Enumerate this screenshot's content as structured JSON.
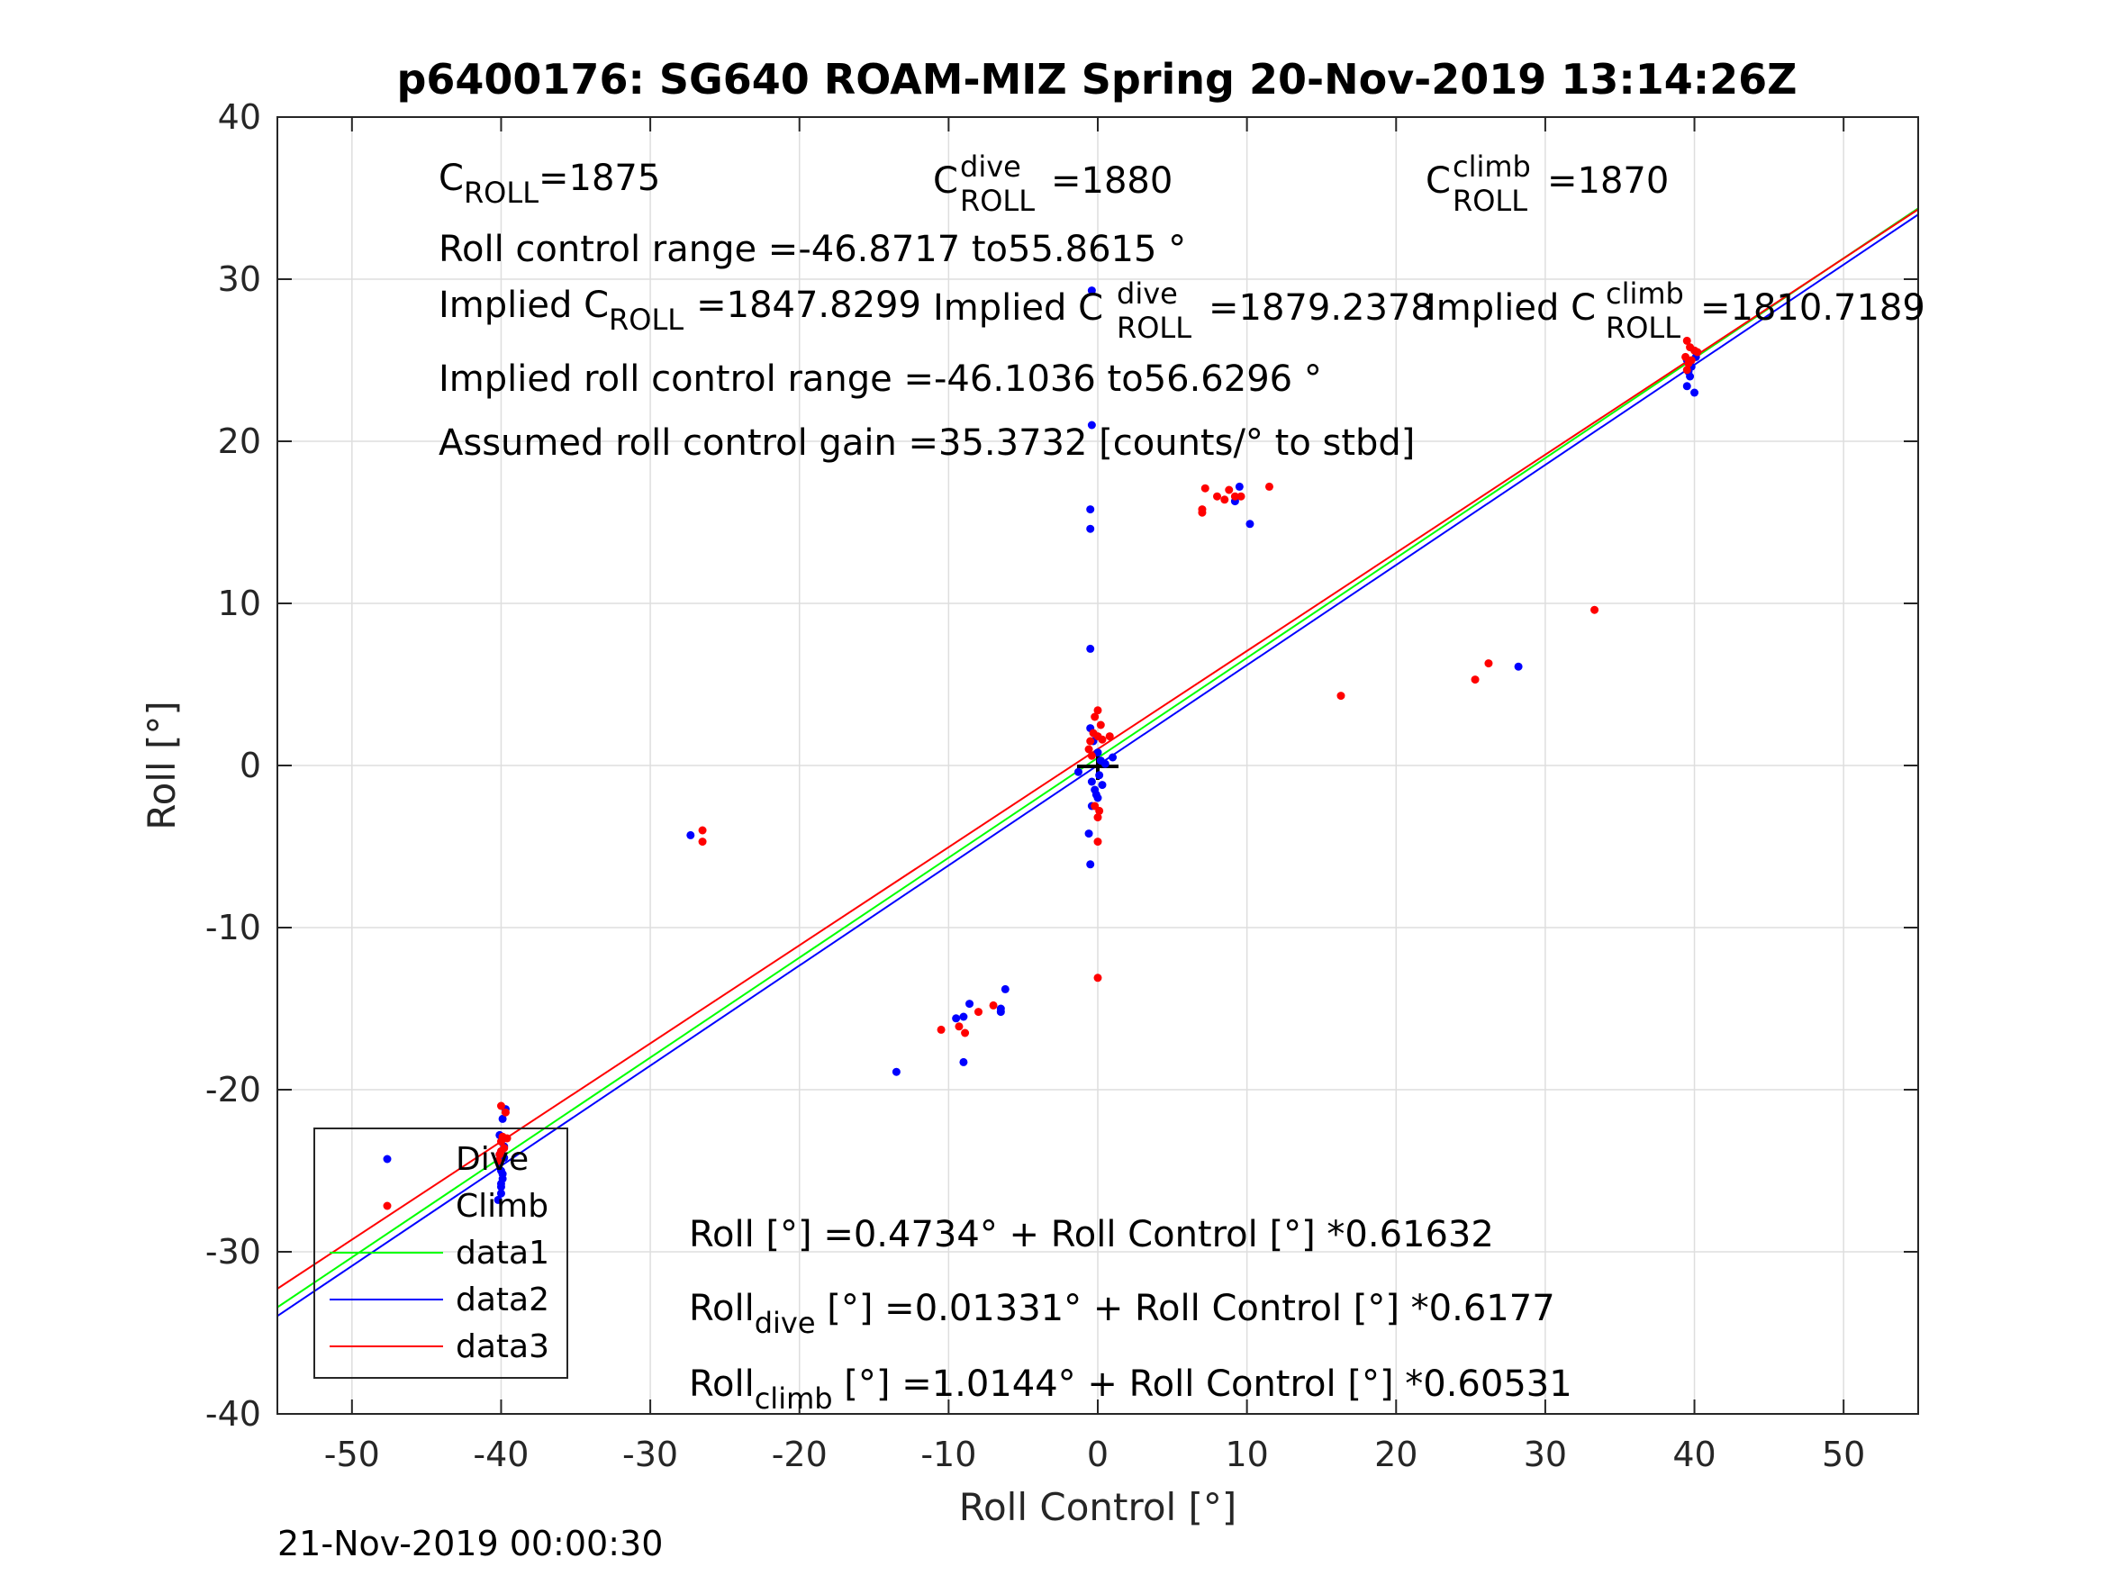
{
  "figure": {
    "title": "p6400176: SG640 ROAM-MIZ Spring 20-Nov-2019 13:14:26Z",
    "footer_timestamp": "21-Nov-2019 00:00:30"
  },
  "annotations": {
    "c_roll": {
      "base": "C",
      "sub": "ROLL",
      "value": "=1875"
    },
    "c_roll_dive": {
      "base": "C",
      "sup": "dive",
      "sub": "ROLL",
      "value": "=1880"
    },
    "c_roll_climb": {
      "base": "C",
      "sup": "climb",
      "sub": "ROLL",
      "value": "=1870"
    },
    "roll_control_range": "Roll control range =-46.8717 to55.8615 °",
    "implied_c_roll": {
      "prefix": "Implied C",
      "sub": "ROLL",
      "value": "=1847.8299"
    },
    "implied_c_roll_dive": {
      "prefix": "Implied C",
      "sup": "dive",
      "sub": "ROLL",
      "value": "=1879.2378"
    },
    "implied_c_roll_climb": {
      "prefix": "Implied C",
      "sup": "climb",
      "sub": "ROLL",
      "value": "=1810.7189"
    },
    "implied_roll_control_range": "Implied roll control range =-46.1036 to56.6296 °",
    "assumed_gain": "Assumed roll control gain =35.3732 [counts/° to stbd]",
    "fit_all": "Roll [°] =0.4734° + Roll Control [°] *0.61632",
    "fit_dive": {
      "prefix": "Roll",
      "sub": "dive",
      "suffix": " [°] =0.01331° + Roll Control [°] *0.6177"
    },
    "fit_climb": {
      "prefix": "Roll",
      "sub": "climb",
      "suffix": " [°] =1.0144° + Roll Control [°] *0.60531"
    }
  },
  "chart_data": {
    "type": "scatter",
    "title": "p6400176: SG640 ROAM-MIZ Spring 20-Nov-2019 13:14:26Z",
    "xlabel": "Roll Control [°]",
    "ylabel": "Roll [°]",
    "xlim": [
      -55,
      55
    ],
    "ylim": [
      -40,
      40
    ],
    "xticks": [
      -50,
      -40,
      -30,
      -20,
      -10,
      0,
      10,
      20,
      30,
      40,
      50
    ],
    "yticks": [
      -40,
      -30,
      -20,
      -10,
      0,
      10,
      20,
      30,
      40
    ],
    "grid": true,
    "legend_position": "bottom-left",
    "legend": [
      "Dive",
      "Climb",
      "data1",
      "data2",
      "data3"
    ],
    "series": [
      {
        "name": "Dive",
        "kind": "points",
        "color": "#0000ff",
        "points": [
          [
            -40.0,
            -25.0
          ],
          [
            -40.1,
            -24.5
          ],
          [
            -39.9,
            -25.5
          ],
          [
            -40.0,
            -26.0
          ],
          [
            -40.2,
            -26.8
          ],
          [
            -39.8,
            -24.2
          ],
          [
            -40.0,
            -23.8
          ],
          [
            -40.1,
            -22.8
          ],
          [
            -39.9,
            -21.8
          ],
          [
            -39.7,
            -21.2
          ],
          [
            -40.0,
            -25.8
          ],
          [
            -40.1,
            -24.0
          ],
          [
            -39.8,
            -23.5
          ],
          [
            -40.0,
            -26.4
          ],
          [
            -39.9,
            -25.2
          ],
          [
            -27.3,
            -4.3
          ],
          [
            -13.5,
            -18.9
          ],
          [
            -9.5,
            -15.6
          ],
          [
            -9.0,
            -15.5
          ],
          [
            -9.0,
            -18.3
          ],
          [
            -8.6,
            -14.7
          ],
          [
            -6.5,
            -15.2
          ],
          [
            -6.5,
            -15.0
          ],
          [
            -6.2,
            -13.8
          ],
          [
            -0.4,
            29.3
          ],
          [
            -0.4,
            21.0
          ],
          [
            -0.5,
            15.8
          ],
          [
            -0.5,
            14.6
          ],
          [
            -0.5,
            7.2
          ],
          [
            -0.5,
            2.3
          ],
          [
            -0.3,
            1.5
          ],
          [
            0.0,
            0.8
          ],
          [
            0.2,
            0.3
          ],
          [
            0.5,
            0.1
          ],
          [
            1.0,
            0.5
          ],
          [
            -1.3,
            -0.4
          ],
          [
            -0.4,
            -1.0
          ],
          [
            -0.2,
            -1.5
          ],
          [
            0.0,
            -2.0
          ],
          [
            -0.4,
            -2.5
          ],
          [
            -0.6,
            -4.2
          ],
          [
            -0.5,
            -6.1
          ],
          [
            0.3,
            -1.2
          ],
          [
            0.1,
            -0.6
          ],
          [
            -0.1,
            -1.8
          ],
          [
            9.2,
            16.3
          ],
          [
            9.5,
            17.2
          ],
          [
            10.2,
            14.9
          ],
          [
            28.2,
            6.1
          ],
          [
            39.5,
            25.0
          ],
          [
            39.8,
            24.6
          ],
          [
            40.0,
            23.0
          ],
          [
            39.5,
            23.4
          ],
          [
            39.7,
            24.0
          ],
          [
            40.1,
            25.2
          ],
          [
            39.6,
            24.3
          ]
        ]
      },
      {
        "name": "Climb",
        "kind": "points",
        "color": "#ff0000",
        "points": [
          [
            -40.0,
            -23.2
          ],
          [
            -39.8,
            -23.6
          ],
          [
            -40.1,
            -24.0
          ],
          [
            -39.9,
            -22.9
          ],
          [
            -40.0,
            -21.0
          ],
          [
            -39.7,
            -21.4
          ],
          [
            -40.2,
            -24.4
          ],
          [
            -39.6,
            -23.0
          ],
          [
            -40.0,
            -23.8
          ],
          [
            -26.5,
            -4.0
          ],
          [
            -26.5,
            -4.7
          ],
          [
            -10.5,
            -16.3
          ],
          [
            -9.3,
            -16.1
          ],
          [
            -8.9,
            -16.5
          ],
          [
            -8.0,
            -15.2
          ],
          [
            -7.0,
            -14.8
          ],
          [
            -0.2,
            3.0
          ],
          [
            0.0,
            3.4
          ],
          [
            -0.3,
            2.0
          ],
          [
            -0.5,
            1.5
          ],
          [
            -0.6,
            1.0
          ],
          [
            0.0,
            1.8
          ],
          [
            0.3,
            1.6
          ],
          [
            0.8,
            1.8
          ],
          [
            -0.2,
            -2.5
          ],
          [
            0.0,
            -3.2
          ],
          [
            0.0,
            -4.7
          ],
          [
            0.1,
            -2.8
          ],
          [
            0.0,
            -13.1
          ],
          [
            -0.4,
            0.6
          ],
          [
            0.2,
            2.5
          ],
          [
            7.0,
            15.6
          ],
          [
            7.0,
            15.8
          ],
          [
            7.2,
            17.1
          ],
          [
            8.0,
            16.6
          ],
          [
            8.5,
            16.4
          ],
          [
            8.8,
            17.0
          ],
          [
            9.2,
            16.6
          ],
          [
            9.6,
            16.6
          ],
          [
            11.5,
            17.2
          ],
          [
            16.3,
            4.3
          ],
          [
            25.3,
            5.3
          ],
          [
            26.2,
            6.3
          ],
          [
            33.3,
            9.6
          ],
          [
            39.5,
            26.2
          ],
          [
            39.7,
            25.8
          ],
          [
            40.0,
            25.6
          ],
          [
            39.4,
            25.2
          ],
          [
            39.6,
            24.8
          ],
          [
            40.2,
            25.5
          ],
          [
            39.8,
            25.0
          ],
          [
            39.5,
            24.4
          ]
        ]
      },
      {
        "name": "data1",
        "kind": "line",
        "color": "#00ff00",
        "intercept": 0.4734,
        "slope": 0.61632
      },
      {
        "name": "data2",
        "kind": "line",
        "color": "#0000ff",
        "intercept": 0.01331,
        "slope": 0.6177
      },
      {
        "name": "data3",
        "kind": "line",
        "color": "#ff0000",
        "intercept": 1.0144,
        "slope": 0.60531
      }
    ]
  }
}
